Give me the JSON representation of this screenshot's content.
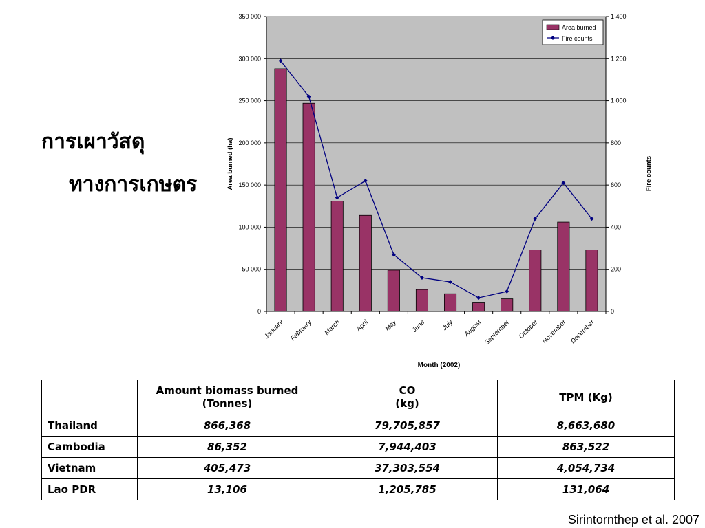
{
  "title_thai": {
    "line1": "การเผาวัสดุ",
    "line2": "ทางการเกษตร"
  },
  "colors": {
    "plot_bg": "#c0c0c0",
    "bar": "#993366",
    "line": "#000080"
  },
  "chart_data": {
    "type": "bar",
    "categories": [
      "January",
      "February",
      "March",
      "April",
      "May",
      "June",
      "July",
      "August",
      "September",
      "October",
      "November",
      "December"
    ],
    "series": [
      {
        "name": "Area burned",
        "type": "bar",
        "axis": "left",
        "values": [
          288000,
          247000,
          131000,
          114000,
          49000,
          26000,
          21000,
          11000,
          15000,
          73000,
          106000,
          73000
        ]
      },
      {
        "name": "Fire counts",
        "type": "line",
        "axis": "right",
        "values": [
          1190,
          1020,
          540,
          620,
          270,
          160,
          140,
          65,
          95,
          440,
          610,
          440
        ]
      }
    ],
    "xlabel": "Month (2002)",
    "ylabel": "Area burned (ha)",
    "y2label": "Fire counts",
    "ylim": [
      0,
      350000
    ],
    "y2lim": [
      0,
      1400
    ],
    "yticks": [
      "0",
      "50 000",
      "100 000",
      "150 000",
      "200 000",
      "250 000",
      "300 000",
      "350 000"
    ],
    "y2ticks": [
      "0",
      "200",
      "400",
      "600",
      "800",
      "1 000",
      "1 200",
      "1 400"
    ],
    "grid": true,
    "legend_position": "top-right"
  },
  "table": {
    "headers": [
      "",
      "Amount biomass burned\n(Tonnes)",
      "CO\n(kg)",
      "TPM (Kg)"
    ],
    "rows": [
      {
        "country": "Thailand",
        "biomass": "866,368",
        "co": "79,705,857",
        "tpm": "8,663,680"
      },
      {
        "country": "Cambodia",
        "biomass": "86,352",
        "co": "7,944,403",
        "tpm": "863,522"
      },
      {
        "country": "Vietnam",
        "biomass": "405,473",
        "co": "37,303,554",
        "tpm": "4,054,734"
      },
      {
        "country": "Lao PDR",
        "biomass": "13,106",
        "co": "1,205,785",
        "tpm": "131,064"
      }
    ]
  },
  "citation": "Sirintornthep et al. 2007"
}
